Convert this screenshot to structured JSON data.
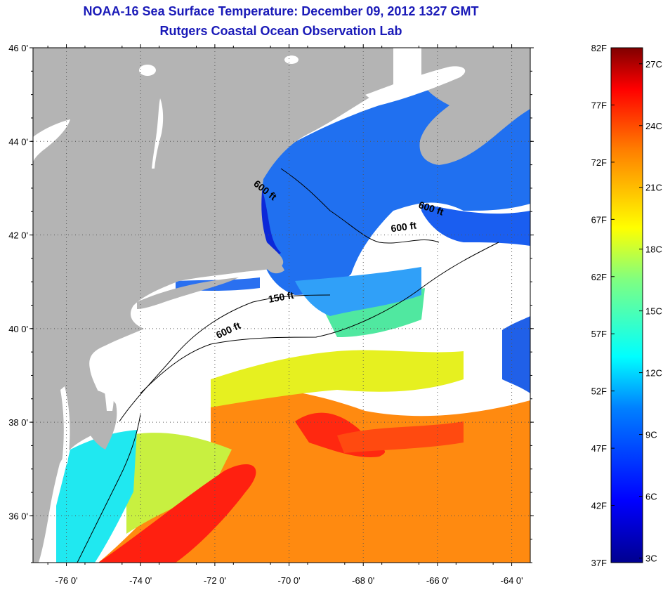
{
  "title_line1": "NOAA-16 Sea Surface Temperature:  December 09, 2012 1327 GMT",
  "title_line2": "Rutgers Coastal Ocean Observation Lab",
  "map": {
    "lat_ticks": [
      {
        "value": 46,
        "label": "46 0'"
      },
      {
        "value": 44,
        "label": "44 0'"
      },
      {
        "value": 42,
        "label": "42 0'"
      },
      {
        "value": 40,
        "label": "40 0'"
      },
      {
        "value": 38,
        "label": "38 0'"
      },
      {
        "value": 36,
        "label": "36 0'"
      }
    ],
    "lon_ticks": [
      {
        "value": -76,
        "label": "-76 0'"
      },
      {
        "value": -74,
        "label": "-74 0'"
      },
      {
        "value": -72,
        "label": "-72 0'"
      },
      {
        "value": -70,
        "label": "-70 0'"
      },
      {
        "value": -68,
        "label": "-68 0'"
      },
      {
        "value": -66,
        "label": "-66 0'"
      },
      {
        "value": -64,
        "label": "-64 0'"
      }
    ],
    "depth_labels": [
      {
        "text": "600 ft",
        "lon": -70.7,
        "lat": 42.9,
        "angle": 38
      },
      {
        "text": "600 ft",
        "lon": -66.2,
        "lat": 42.5,
        "angle": 18
      },
      {
        "text": "600 ft",
        "lon": -66.9,
        "lat": 42.1,
        "angle": -8
      },
      {
        "text": "150 ft",
        "lon": -70.2,
        "lat": 40.6,
        "angle": -10
      },
      {
        "text": "600 ft",
        "lon": -71.6,
        "lat": 39.9,
        "angle": -25
      }
    ],
    "colors": {
      "land": "#b4b4b4",
      "cloud": "#ffffff",
      "grid": "#555555"
    }
  },
  "colorbar": {
    "f_labels": [
      "82F",
      "77F",
      "72F",
      "67F",
      "62F",
      "57F",
      "52F",
      "47F",
      "42F",
      "37F"
    ],
    "c_labels": [
      "27C",
      "24C",
      "21C",
      "18C",
      "15C",
      "12C",
      "9C",
      "6C",
      "3C"
    ],
    "range_f": [
      37,
      82
    ]
  }
}
